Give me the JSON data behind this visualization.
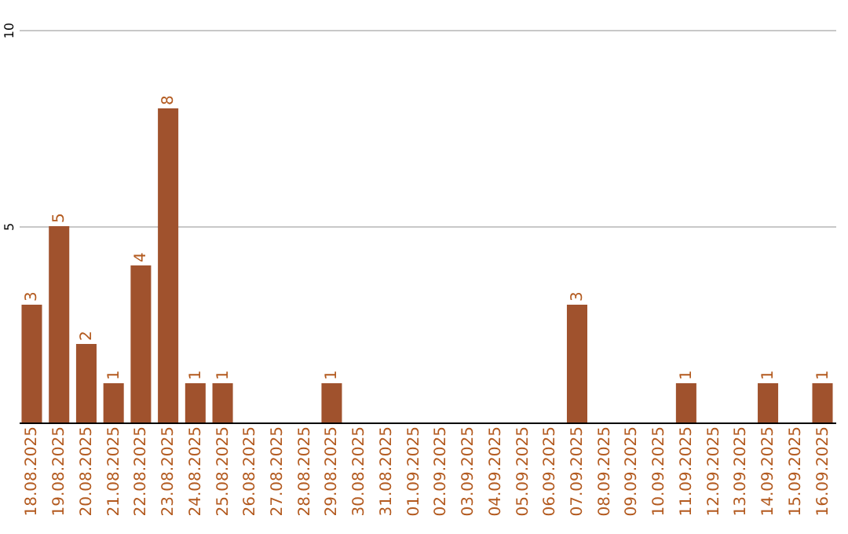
{
  "chart_data": {
    "type": "bar",
    "categories": [
      "18.08.2025",
      "19.08.2025",
      "20.08.2025",
      "21.08.2025",
      "22.08.2025",
      "23.08.2025",
      "24.08.2025",
      "25.08.2025",
      "26.08.2025",
      "27.08.2025",
      "28.08.2025",
      "29.08.2025",
      "30.08.2025",
      "31.08.2025",
      "01.09.2025",
      "02.09.2025",
      "03.09.2025",
      "04.09.2025",
      "05.09.2025",
      "06.09.2025",
      "07.09.2025",
      "08.09.2025",
      "09.09.2025",
      "10.09.2025",
      "11.09.2025",
      "12.09.2025",
      "13.09.2025",
      "14.09.2025",
      "15.09.2025",
      "16.09.2025"
    ],
    "values": [
      3,
      5,
      2,
      1,
      4,
      8,
      1,
      1,
      0,
      0,
      0,
      1,
      0,
      0,
      0,
      0,
      0,
      0,
      0,
      0,
      3,
      0,
      0,
      0,
      1,
      0,
      0,
      1,
      0,
      1
    ],
    "value_labels": [
      "3",
      "5",
      "2",
      "1",
      "4",
      "8",
      "1",
      "1",
      null,
      null,
      null,
      "1",
      null,
      null,
      null,
      null,
      null,
      null,
      null,
      null,
      "3",
      null,
      null,
      null,
      "1",
      null,
      null,
      "1",
      null,
      "1"
    ],
    "color": "#a0522d",
    "ylim": [
      0,
      10
    ],
    "yticks": [
      5,
      10
    ],
    "grid": "y"
  }
}
